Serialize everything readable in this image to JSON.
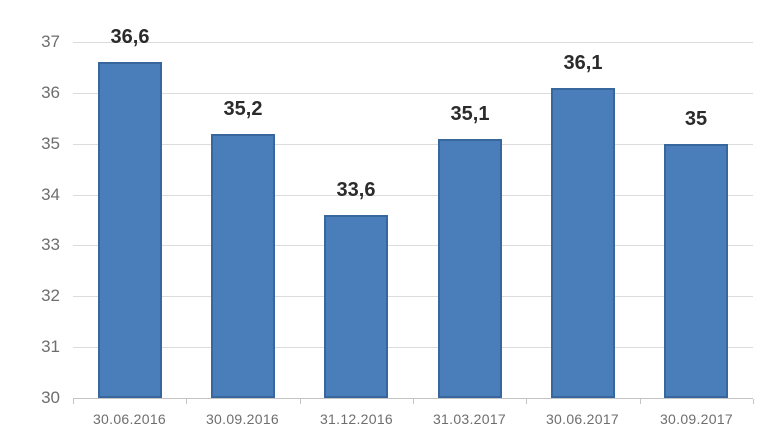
{
  "chart_data": {
    "type": "bar",
    "title": "",
    "xlabel": "",
    "ylabel": "",
    "categories": [
      "30.06.2016",
      "30.09.2016",
      "31.12.2016",
      "31.03.2017",
      "30.06.2017",
      "30.09.2017"
    ],
    "values": [
      36.6,
      35.2,
      33.6,
      35.1,
      36.1,
      35
    ],
    "value_labels": [
      "36,6",
      "35,2",
      "33,6",
      "35,1",
      "36,1",
      "35"
    ],
    "ylim": [
      30,
      37
    ],
    "yticks": [
      30,
      31,
      32,
      33,
      34,
      35,
      36,
      37
    ],
    "ytick_labels": [
      "30",
      "31",
      "32",
      "33",
      "34",
      "35",
      "36",
      "37"
    ],
    "grid": "horizontal",
    "legend": "none",
    "colors": {
      "bar_fill": "#4a7ebb",
      "bar_border": "#38679e",
      "gridline": "#dcdcdc",
      "axis_line": "#c4c4c4",
      "axis_label_text": "#6e6e6e",
      "value_label_text": "#2b2b2b",
      "background": "#ffffff"
    }
  }
}
